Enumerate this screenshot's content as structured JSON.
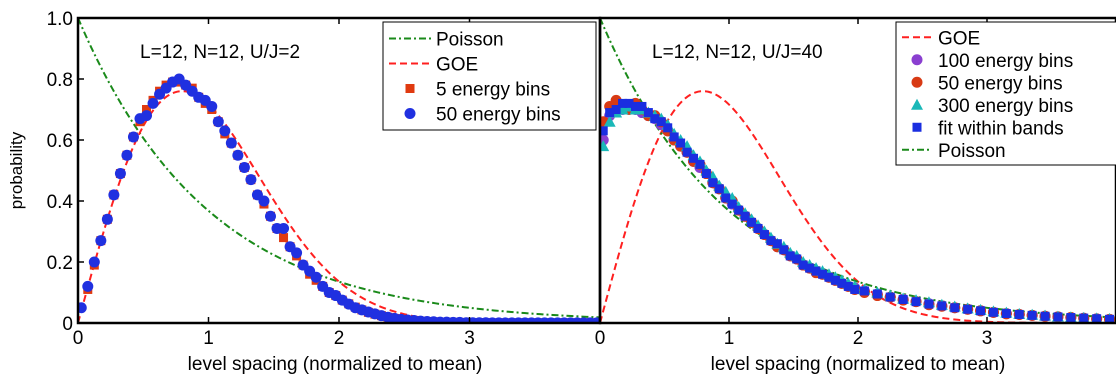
{
  "chart_data": [
    {
      "type": "line",
      "annotation": "L=12, N=12, U/J=2",
      "xlabel": "level spacing (normalized to mean)",
      "ylabel": "probability",
      "xlim": [
        0,
        4
      ],
      "ylim": [
        0,
        1
      ],
      "x_ticks": [
        "0",
        "1",
        "2",
        "3"
      ],
      "y_ticks": [
        "0",
        "0.2",
        "0.4",
        "0.6",
        "0.8",
        "1.0"
      ],
      "legend_position": "top-right",
      "grid": false,
      "series": [
        {
          "name": "Poisson",
          "kind": "curve",
          "function": "poisson",
          "color": "#1a8a1a",
          "dash": "dash-dot"
        },
        {
          "name": "GOE",
          "kind": "curve",
          "function": "goe",
          "color": "#ff2020",
          "dash": "dashed"
        },
        {
          "name": "5 energy bins",
          "kind": "markers",
          "marker": "square",
          "color": "#e03a10",
          "x": [
            0.075,
            0.125,
            0.175,
            0.225,
            0.275,
            0.325,
            0.375,
            0.425,
            0.475,
            0.525,
            0.575,
            0.625,
            0.675,
            0.725,
            0.775,
            0.825,
            0.875,
            0.925,
            0.975,
            1.025,
            1.075,
            1.125,
            1.175,
            1.225,
            1.275,
            1.325,
            1.375,
            1.425,
            1.475,
            1.525,
            1.575,
            1.625,
            1.675,
            1.725,
            1.775,
            1.825,
            1.875,
            1.925,
            1.975,
            2.025,
            2.075,
            2.125,
            2.175,
            2.225,
            2.275,
            2.325,
            2.375,
            2.425,
            2.475,
            2.525,
            2.575,
            2.625,
            2.675,
            2.725,
            2.775,
            2.825,
            2.875,
            2.925,
            2.975,
            3.025,
            3.075,
            3.125,
            3.175,
            3.225,
            3.275,
            3.325,
            3.375,
            3.425,
            3.475,
            3.525,
            3.575,
            3.625,
            3.675,
            3.725,
            3.775,
            3.825,
            3.875,
            3.925,
            3.975
          ],
          "y": [
            0.11,
            0.19,
            0.27,
            0.34,
            0.42,
            0.49,
            0.55,
            0.61,
            0.66,
            0.7,
            0.73,
            0.76,
            0.78,
            0.79,
            0.79,
            0.78,
            0.77,
            0.74,
            0.72,
            0.7,
            0.66,
            0.62,
            0.59,
            0.55,
            0.51,
            0.47,
            0.42,
            0.39,
            0.35,
            0.31,
            0.28,
            0.25,
            0.22,
            0.19,
            0.16,
            0.14,
            0.12,
            0.1,
            0.09,
            0.075,
            0.063,
            0.052,
            0.043,
            0.035,
            0.029,
            0.024,
            0.019,
            0.015,
            0.012,
            0.01,
            0.008,
            0.006,
            0.005,
            0.004,
            0.003,
            0.003,
            0.002,
            0.002,
            0.001,
            0.001,
            0.001,
            0.001,
            0.0005,
            0.0005,
            0.0005,
            0.0005,
            0.0005,
            0.0005,
            0.0005,
            0.0005,
            0.0005,
            0.0005,
            0.0005,
            0.0005,
            0.0005,
            0.0005,
            0.0005,
            0.0005,
            0.0005
          ]
        },
        {
          "name": "50 energy bins",
          "kind": "markers",
          "marker": "circle",
          "color": "#2030e0",
          "x": [
            0.025,
            0.075,
            0.125,
            0.175,
            0.225,
            0.275,
            0.325,
            0.375,
            0.425,
            0.475,
            0.525,
            0.575,
            0.625,
            0.675,
            0.725,
            0.775,
            0.825,
            0.875,
            0.925,
            0.975,
            1.025,
            1.075,
            1.125,
            1.175,
            1.225,
            1.275,
            1.325,
            1.375,
            1.425,
            1.475,
            1.525,
            1.575,
            1.625,
            1.675,
            1.725,
            1.775,
            1.825,
            1.875,
            1.925,
            1.975,
            2.025,
            2.075,
            2.125,
            2.175,
            2.225,
            2.275,
            2.325,
            2.375,
            2.425,
            2.475,
            2.525,
            2.575,
            2.625,
            2.675,
            2.725,
            2.775,
            2.825,
            2.875,
            2.925,
            2.975,
            3.025,
            3.075,
            3.125,
            3.175,
            3.225,
            3.275,
            3.325,
            3.375,
            3.425,
            3.475,
            3.525,
            3.575,
            3.625,
            3.675,
            3.725,
            3.775,
            3.825,
            3.875,
            3.925,
            3.975
          ],
          "y": [
            0.05,
            0.12,
            0.2,
            0.27,
            0.34,
            0.42,
            0.49,
            0.55,
            0.61,
            0.67,
            0.68,
            0.72,
            0.75,
            0.77,
            0.79,
            0.8,
            0.78,
            0.76,
            0.74,
            0.73,
            0.71,
            0.66,
            0.63,
            0.59,
            0.55,
            0.51,
            0.47,
            0.42,
            0.4,
            0.35,
            0.31,
            0.31,
            0.25,
            0.23,
            0.19,
            0.17,
            0.15,
            0.12,
            0.1,
            0.09,
            0.075,
            0.062,
            0.05,
            0.043,
            0.036,
            0.03,
            0.024,
            0.019,
            0.015,
            0.012,
            0.01,
            0.008,
            0.006,
            0.005,
            0.004,
            0.003,
            0.003,
            0.002,
            0.002,
            0.001,
            0.001,
            0.001,
            0.001,
            0.0005,
            0.0005,
            0.0005,
            0.0005,
            0.0005,
            0.0005,
            0.0005,
            0.0005,
            0.0005,
            0.0005,
            0.0005,
            0.0005,
            0.0005,
            0.0005,
            0.0005,
            0.0005,
            0.0005
          ]
        }
      ]
    },
    {
      "type": "line",
      "annotation": "L=12, N=12, U/J=40",
      "xlabel": "level spacing (normalized to mean)",
      "ylabel": "",
      "xlim": [
        0,
        4
      ],
      "ylim": [
        0,
        1
      ],
      "x_ticks": [
        "0",
        "1",
        "2",
        "3"
      ],
      "y_ticks": [],
      "legend_position": "top-right",
      "grid": false,
      "series": [
        {
          "name": "GOE",
          "kind": "curve",
          "function": "goe",
          "color": "#ff2020",
          "dash": "dashed"
        },
        {
          "name": "100 energy bins",
          "kind": "markers",
          "marker": "circle",
          "color": "#8a3fd0",
          "x": [
            0.025,
            0.075,
            0.125,
            0.175,
            0.225,
            0.275,
            0.325,
            0.375,
            0.425,
            0.475,
            0.525,
            0.575,
            0.625,
            0.675,
            0.725,
            0.775,
            0.825,
            0.875,
            0.925,
            0.975,
            1.025,
            1.075,
            1.125,
            1.175,
            1.225,
            1.275,
            1.325,
            1.375,
            1.425,
            1.475,
            1.525,
            1.575,
            1.625,
            1.675,
            1.725,
            1.775,
            1.825,
            1.875,
            1.925,
            1.975,
            2.05,
            2.15,
            2.25,
            2.35,
            2.45,
            2.55,
            2.65,
            2.75,
            2.85,
            2.95,
            3.05,
            3.15,
            3.25,
            3.35,
            3.45,
            3.55,
            3.65,
            3.75,
            3.85,
            3.95
          ],
          "y": [
            0.6,
            0.68,
            0.7,
            0.7,
            0.71,
            0.7,
            0.69,
            0.68,
            0.67,
            0.65,
            0.63,
            0.6,
            0.58,
            0.56,
            0.53,
            0.51,
            0.49,
            0.46,
            0.44,
            0.41,
            0.39,
            0.37,
            0.35,
            0.33,
            0.31,
            0.29,
            0.27,
            0.25,
            0.24,
            0.22,
            0.21,
            0.19,
            0.18,
            0.17,
            0.16,
            0.15,
            0.14,
            0.13,
            0.12,
            0.115,
            0.105,
            0.095,
            0.085,
            0.078,
            0.07,
            0.063,
            0.056,
            0.05,
            0.045,
            0.04,
            0.035,
            0.031,
            0.028,
            0.025,
            0.022,
            0.02,
            0.018,
            0.016,
            0.014,
            0.012
          ]
        },
        {
          "name": "50 energy bins",
          "kind": "markers",
          "marker": "circle",
          "color": "#d83a14",
          "x": [
            0.025,
            0.075,
            0.125,
            0.175,
            0.225,
            0.275,
            0.325,
            0.375,
            0.425,
            0.475,
            0.525,
            0.575,
            0.625,
            0.675,
            0.725,
            0.775,
            0.825,
            0.875,
            0.925,
            0.975,
            1.025,
            1.075,
            1.125,
            1.175,
            1.225,
            1.275,
            1.325,
            1.375,
            1.425,
            1.475,
            1.525,
            1.575,
            1.625,
            1.675,
            1.725,
            1.775,
            1.825,
            1.875,
            1.925,
            1.975,
            2.05,
            2.15,
            2.25,
            2.35,
            2.45,
            2.55,
            2.65,
            2.75,
            2.85,
            2.95,
            3.05,
            3.15,
            3.25,
            3.35,
            3.45,
            3.55,
            3.65,
            3.75,
            3.85,
            3.95
          ],
          "y": [
            0.66,
            0.71,
            0.73,
            0.71,
            0.7,
            0.72,
            0.7,
            0.68,
            0.68,
            0.66,
            0.63,
            0.6,
            0.58,
            0.56,
            0.53,
            0.52,
            0.49,
            0.46,
            0.44,
            0.41,
            0.4,
            0.37,
            0.35,
            0.33,
            0.31,
            0.29,
            0.27,
            0.25,
            0.24,
            0.22,
            0.21,
            0.19,
            0.18,
            0.165,
            0.16,
            0.15,
            0.14,
            0.13,
            0.12,
            0.11,
            0.1,
            0.09,
            0.085,
            0.075,
            0.07,
            0.06,
            0.055,
            0.05,
            0.045,
            0.04,
            0.035,
            0.03,
            0.028,
            0.025,
            0.022,
            0.02,
            0.018,
            0.015,
            0.013,
            0.012
          ]
        },
        {
          "name": "300 energy bins",
          "kind": "markers",
          "marker": "triangle",
          "color": "#1ab8b8",
          "x": [
            0.025,
            0.075,
            0.125,
            0.175,
            0.225,
            0.275,
            0.325,
            0.375,
            0.425,
            0.475,
            0.525,
            0.575,
            0.625,
            0.675,
            0.725,
            0.775,
            0.825,
            0.875,
            0.925,
            0.975,
            1.025,
            1.075,
            1.125,
            1.175,
            1.225,
            1.275,
            1.325,
            1.375,
            1.425,
            1.475,
            1.525,
            1.575,
            1.625,
            1.675,
            1.725,
            1.775,
            1.825,
            1.875,
            1.925,
            1.975,
            2.05,
            2.15,
            2.25,
            2.35,
            2.45,
            2.55,
            2.65,
            2.75,
            2.85,
            2.95,
            3.05,
            3.15,
            3.25,
            3.35,
            3.45,
            3.55,
            3.65,
            3.75,
            3.85,
            3.95
          ],
          "y": [
            0.58,
            0.66,
            0.69,
            0.7,
            0.71,
            0.7,
            0.7,
            0.69,
            0.68,
            0.67,
            0.65,
            0.62,
            0.6,
            0.58,
            0.55,
            0.53,
            0.5,
            0.48,
            0.45,
            0.43,
            0.41,
            0.38,
            0.36,
            0.34,
            0.32,
            0.3,
            0.28,
            0.26,
            0.25,
            0.23,
            0.22,
            0.2,
            0.19,
            0.18,
            0.17,
            0.16,
            0.15,
            0.14,
            0.13,
            0.12,
            0.11,
            0.1,
            0.09,
            0.08,
            0.075,
            0.068,
            0.06,
            0.054,
            0.048,
            0.043,
            0.038,
            0.034,
            0.03,
            0.027,
            0.024,
            0.021,
            0.019,
            0.017,
            0.015,
            0.013
          ]
        },
        {
          "name": "fit within bands",
          "kind": "markers",
          "marker": "square",
          "color": "#1a2ee0",
          "x": [
            0.025,
            0.075,
            0.125,
            0.175,
            0.225,
            0.275,
            0.325,
            0.375,
            0.425,
            0.475,
            0.525,
            0.575,
            0.625,
            0.675,
            0.725,
            0.775,
            0.825,
            0.875,
            0.925,
            0.975,
            1.025,
            1.075,
            1.125,
            1.175,
            1.225,
            1.275,
            1.325,
            1.375,
            1.425,
            1.475,
            1.525,
            1.575,
            1.625,
            1.675,
            1.725,
            1.775,
            1.825,
            1.875,
            1.925,
            1.975,
            2.05,
            2.15,
            2.25,
            2.35,
            2.45,
            2.55,
            2.65,
            2.75,
            2.85,
            2.95,
            3.05,
            3.15,
            3.25,
            3.35,
            3.45,
            3.55,
            3.65,
            3.75,
            3.85,
            3.95
          ],
          "y": [
            0.63,
            0.69,
            0.7,
            0.72,
            0.72,
            0.71,
            0.71,
            0.69,
            0.67,
            0.66,
            0.64,
            0.61,
            0.59,
            0.56,
            0.54,
            0.52,
            0.49,
            0.46,
            0.44,
            0.41,
            0.39,
            0.37,
            0.35,
            0.33,
            0.31,
            0.29,
            0.27,
            0.26,
            0.24,
            0.22,
            0.21,
            0.19,
            0.18,
            0.17,
            0.16,
            0.15,
            0.14,
            0.13,
            0.12,
            0.11,
            0.105,
            0.095,
            0.085,
            0.077,
            0.07,
            0.062,
            0.056,
            0.05,
            0.045,
            0.04,
            0.035,
            0.031,
            0.028,
            0.025,
            0.022,
            0.02,
            0.018,
            0.016,
            0.014,
            0.012
          ]
        },
        {
          "name": "Poisson",
          "kind": "curve",
          "function": "poisson",
          "color": "#1a8a1a",
          "dash": "dash-dot"
        }
      ]
    }
  ]
}
